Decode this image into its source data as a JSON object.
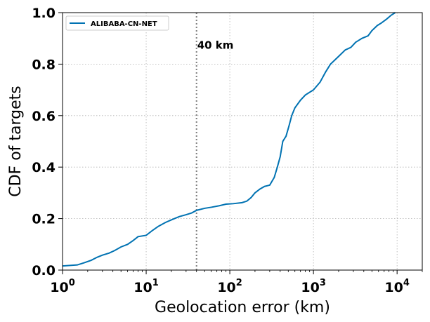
{
  "chart_data": {
    "type": "line",
    "title": "",
    "xlabel": "Geolocation error (km)",
    "ylabel": "CDF of targets",
    "xscale": "log",
    "xlim": [
      1,
      20000
    ],
    "ylim": [
      0,
      1
    ],
    "xticks": [
      {
        "value": 1,
        "base": "10",
        "exp": "0"
      },
      {
        "value": 10,
        "base": "10",
        "exp": "1"
      },
      {
        "value": 100,
        "base": "10",
        "exp": "2"
      },
      {
        "value": 1000,
        "base": "10",
        "exp": "3"
      },
      {
        "value": 10000,
        "base": "10",
        "exp": "4"
      }
    ],
    "yticks": [
      {
        "value": 0,
        "label": "0.0"
      },
      {
        "value": 0.2,
        "label": "0.2"
      },
      {
        "value": 0.4,
        "label": "0.4"
      },
      {
        "value": 0.6,
        "label": "0.6"
      },
      {
        "value": 0.8,
        "label": "0.8"
      },
      {
        "value": 1.0,
        "label": "1.0"
      }
    ],
    "grid": true,
    "legend": {
      "position": "top-left"
    },
    "vline": {
      "x": 40,
      "color": "#7f7f7f",
      "style": "dotted"
    },
    "annotation": {
      "text": "40 km",
      "x": 40,
      "y": 0.9
    },
    "series": [
      {
        "name": "ALIBABA-CN-NET",
        "color": "#0072b2",
        "points": [
          [
            1,
            0.016
          ],
          [
            1.5,
            0.02
          ],
          [
            1.8,
            0.028
          ],
          [
            2.2,
            0.038
          ],
          [
            2.6,
            0.05
          ],
          [
            3,
            0.058
          ],
          [
            3.6,
            0.066
          ],
          [
            4.2,
            0.076
          ],
          [
            5,
            0.09
          ],
          [
            6,
            0.1
          ],
          [
            7,
            0.115
          ],
          [
            8,
            0.13
          ],
          [
            10,
            0.135
          ],
          [
            12,
            0.155
          ],
          [
            14,
            0.17
          ],
          [
            17,
            0.185
          ],
          [
            20,
            0.195
          ],
          [
            25,
            0.208
          ],
          [
            30,
            0.215
          ],
          [
            35,
            0.222
          ],
          [
            40,
            0.232
          ],
          [
            50,
            0.24
          ],
          [
            60,
            0.244
          ],
          [
            75,
            0.25
          ],
          [
            90,
            0.256
          ],
          [
            110,
            0.258
          ],
          [
            140,
            0.262
          ],
          [
            160,
            0.268
          ],
          [
            180,
            0.282
          ],
          [
            200,
            0.3
          ],
          [
            230,
            0.315
          ],
          [
            260,
            0.325
          ],
          [
            300,
            0.33
          ],
          [
            340,
            0.36
          ],
          [
            370,
            0.4
          ],
          [
            400,
            0.44
          ],
          [
            430,
            0.5
          ],
          [
            470,
            0.52
          ],
          [
            510,
            0.56
          ],
          [
            550,
            0.6
          ],
          [
            600,
            0.63
          ],
          [
            700,
            0.66
          ],
          [
            800,
            0.68
          ],
          [
            1000,
            0.7
          ],
          [
            1200,
            0.73
          ],
          [
            1400,
            0.77
          ],
          [
            1600,
            0.8
          ],
          [
            2000,
            0.83
          ],
          [
            2400,
            0.855
          ],
          [
            2800,
            0.865
          ],
          [
            3200,
            0.885
          ],
          [
            3800,
            0.9
          ],
          [
            4500,
            0.91
          ],
          [
            5000,
            0.93
          ],
          [
            5800,
            0.95
          ],
          [
            6500,
            0.96
          ],
          [
            7500,
            0.975
          ],
          [
            8500,
            0.99
          ],
          [
            9500,
            1.0
          ]
        ]
      }
    ]
  }
}
